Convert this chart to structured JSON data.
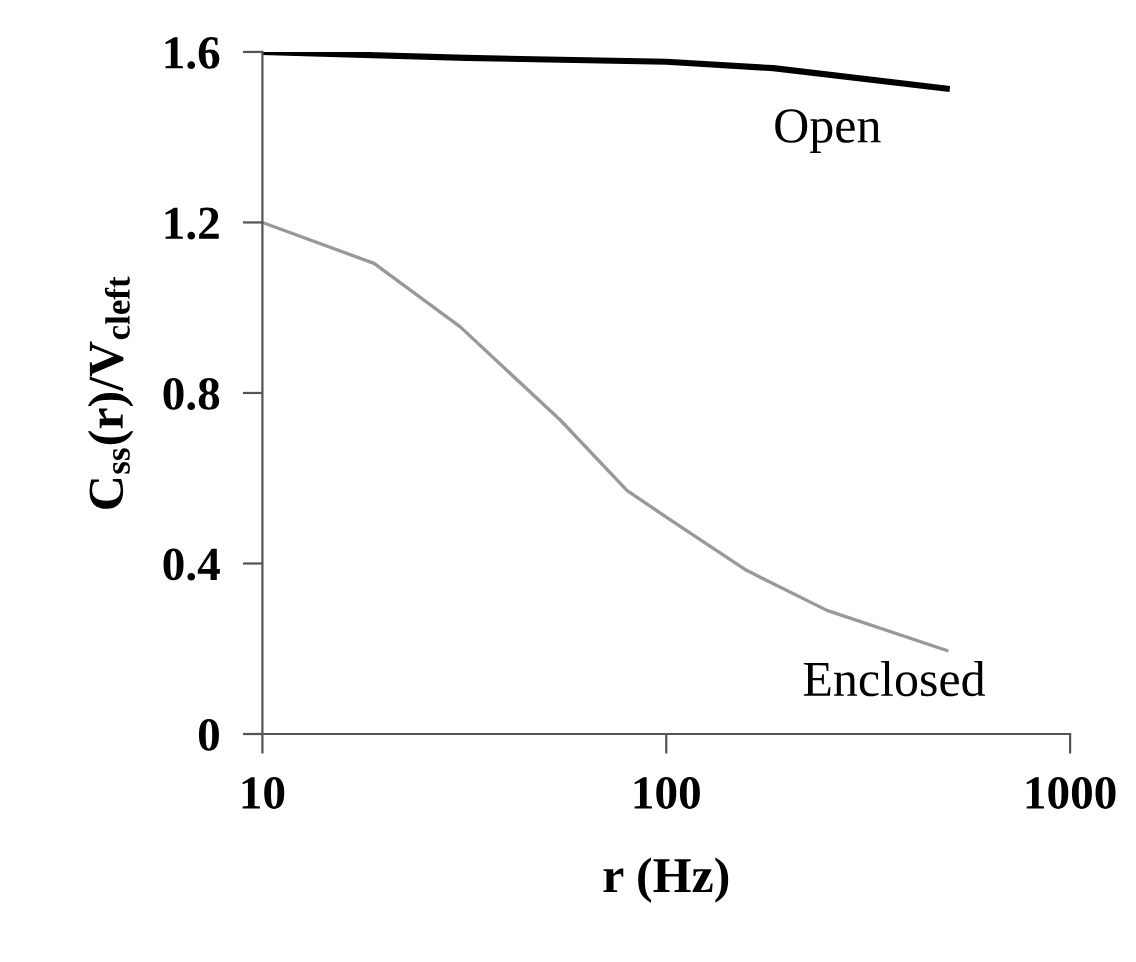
{
  "chart_data": {
    "type": "line",
    "xlabel": "r (Hz)",
    "ylabel": "C$_{ss}$(r)/V$_{cleft}$",
    "log": "x",
    "xlim": [
      10,
      1000
    ],
    "xticks": [
      10,
      100,
      1000
    ],
    "ylim": [
      0,
      1.6
    ],
    "yticks": [
      0,
      0.4,
      0.8,
      1.2,
      1.6
    ],
    "grid": false,
    "legend": false,
    "marker": "none",
    "line_style": "solid",
    "series": [
      {
        "name": "Open",
        "color": "#000000",
        "x": [
          10,
          32,
          100,
          184,
          495
        ],
        "values": [
          1.6,
          1.586,
          1.577,
          1.562,
          1.514
        ]
      },
      {
        "name": "Enclosed",
        "color": "#999999",
        "x": [
          10,
          18.9,
          30.9,
          54.7,
          80,
          100,
          158,
          250,
          495
        ],
        "values": [
          1.2,
          1.104,
          0.955,
          0.736,
          0.571,
          0.509,
          0.384,
          0.29,
          0.196
        ]
      }
    ]
  }
}
